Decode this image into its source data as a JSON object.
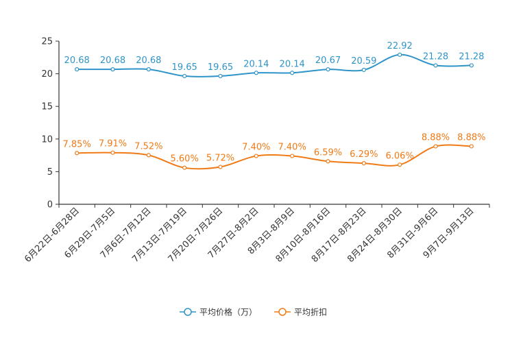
{
  "chart_data": {
    "type": "line",
    "title": "",
    "xlabel": "",
    "ylabel": "",
    "ylim": [
      0,
      25
    ],
    "yticks": [
      0,
      5,
      10,
      15,
      20,
      25
    ],
    "categories": [
      "6月22日-6月28日",
      "6月29日-7月5日",
      "7月6日-7月12日",
      "7月13日-7月19日",
      "7月20日-7月26日",
      "7月27日-8月2日",
      "8月3日-8月9日",
      "8月10日-8月16日",
      "8月17日-8月23日",
      "8月24日-8月30日",
      "8月31日-9月6日",
      "9月7日-9月13日"
    ],
    "series": [
      {
        "name": "平均价格（万）",
        "color": "#2e94c8",
        "values": [
          20.68,
          20.68,
          20.68,
          19.65,
          19.65,
          20.14,
          20.14,
          20.67,
          20.59,
          22.92,
          21.28,
          21.28
        ],
        "labels": [
          "20.68",
          "20.68",
          "20.68",
          "19.65",
          "19.65",
          "20.14",
          "20.14",
          "20.67",
          "20.59",
          "22.92",
          "21.28",
          "21.28"
        ]
      },
      {
        "name": "平均折扣",
        "color": "#f07a16",
        "values": [
          7.85,
          7.91,
          7.52,
          5.6,
          5.72,
          7.4,
          7.4,
          6.59,
          6.29,
          6.06,
          8.88,
          8.88
        ],
        "labels": [
          "7.85%",
          "7.91%",
          "7.52%",
          "5.60%",
          "5.72%",
          "7.40%",
          "7.40%",
          "6.59%",
          "6.29%",
          "6.06%",
          "8.88%",
          "8.88%"
        ]
      }
    ],
    "legend_position": "bottom-center"
  }
}
